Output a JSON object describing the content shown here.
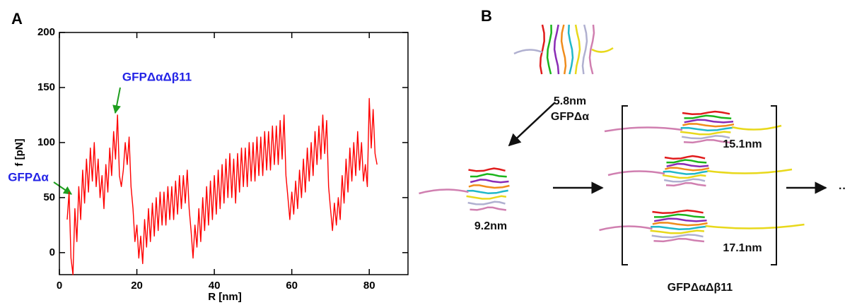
{
  "chart_data": {
    "type": "line",
    "panel_label": "A",
    "xlabel": "R [nm]",
    "ylabel": "f [pN]",
    "x": [
      2.0,
      2.5,
      3.0,
      3.5,
      4.0,
      4.5,
      5.0,
      5.5,
      6.0,
      6.5,
      7.0,
      7.5,
      8.0,
      8.5,
      9.0,
      9.5,
      10.0,
      10.5,
      11.0,
      11.5,
      12.0,
      12.5,
      13.0,
      13.5,
      14.0,
      14.5,
      15.0,
      15.5,
      16.0,
      16.5,
      17.0,
      17.5,
      18.0,
      18.5,
      19.0,
      19.5,
      20.0,
      20.5,
      21.0,
      21.5,
      22.0,
      22.5,
      23.0,
      23.5,
      24.0,
      24.5,
      25.0,
      25.5,
      26.0,
      26.5,
      27.0,
      27.5,
      28.0,
      28.5,
      29.0,
      29.5,
      30.0,
      30.5,
      31.0,
      31.5,
      32.0,
      32.5,
      33.0,
      33.5,
      34.0,
      34.5,
      35.0,
      35.5,
      36.0,
      36.5,
      37.0,
      37.5,
      38.0,
      38.5,
      39.0,
      39.5,
      40.0,
      40.5,
      41.0,
      41.5,
      42.0,
      42.5,
      43.0,
      43.5,
      44.0,
      44.5,
      45.0,
      45.5,
      46.0,
      46.5,
      47.0,
      47.5,
      48.0,
      48.5,
      49.0,
      49.5,
      50.0,
      50.5,
      51.0,
      51.5,
      52.0,
      52.5,
      53.0,
      53.5,
      54.0,
      54.5,
      55.0,
      55.5,
      56.0,
      56.5,
      57.0,
      57.5,
      58.0,
      58.5,
      59.0,
      59.5,
      60.0,
      60.5,
      61.0,
      61.5,
      62.0,
      62.5,
      63.0,
      63.5,
      64.0,
      64.5,
      65.0,
      65.5,
      66.0,
      66.5,
      67.0,
      67.5,
      68.0,
      68.5,
      69.0,
      69.5,
      70.0,
      70.5,
      71.0,
      71.5,
      72.0,
      72.5,
      73.0,
      73.5,
      74.0,
      74.5,
      75.0,
      75.5,
      76.0,
      76.5,
      77.0,
      77.5,
      78.0,
      78.5,
      79.0,
      79.5,
      80.0,
      80.5,
      81.0,
      81.5,
      82.0
    ],
    "values": [
      30,
      55,
      -5,
      -20,
      40,
      10,
      60,
      30,
      75,
      45,
      85,
      55,
      95,
      65,
      100,
      60,
      85,
      50,
      70,
      40,
      80,
      55,
      95,
      70,
      110,
      85,
      125,
      70,
      60,
      75,
      100,
      80,
      105,
      60,
      40,
      10,
      25,
      -5,
      15,
      -10,
      30,
      5,
      40,
      10,
      45,
      15,
      50,
      20,
      55,
      25,
      55,
      25,
      60,
      30,
      60,
      30,
      65,
      35,
      70,
      40,
      70,
      45,
      75,
      40,
      20,
      -5,
      25,
      5,
      40,
      10,
      50,
      20,
      60,
      25,
      65,
      30,
      70,
      35,
      75,
      40,
      80,
      45,
      85,
      50,
      90,
      50,
      85,
      45,
      90,
      55,
      95,
      60,
      95,
      60,
      100,
      65,
      100,
      65,
      105,
      70,
      105,
      70,
      110,
      75,
      110,
      75,
      115,
      80,
      115,
      80,
      120,
      85,
      125,
      70,
      50,
      30,
      55,
      35,
      65,
      40,
      75,
      50,
      85,
      55,
      95,
      65,
      100,
      70,
      110,
      80,
      115,
      85,
      125,
      90,
      120,
      60,
      40,
      20,
      45,
      25,
      50,
      30,
      70,
      45,
      85,
      55,
      95,
      65,
      100,
      70,
      110,
      75,
      100,
      65,
      80,
      60,
      140,
      95,
      130,
      90,
      80
    ],
    "color": "#ff0000",
    "xlim": [
      0,
      90
    ],
    "xticks": [
      0,
      20,
      40,
      60,
      80
    ],
    "ylim": [
      -20,
      200
    ],
    "yticks": [
      0,
      50,
      100,
      150,
      200
    ],
    "annotations": [
      "GFPΔα",
      "GFPΔαΔβ11"
    ]
  },
  "panel_b": {
    "label": "B",
    "top_extension": "5.8nm",
    "top_name": "GFPΔα",
    "left_extension": "9.2nm",
    "upper_extension": "15.1nm",
    "lower_extension": "17.1nm",
    "bracket_name": "GFPΔαΔβ11",
    "continuation": "··"
  }
}
